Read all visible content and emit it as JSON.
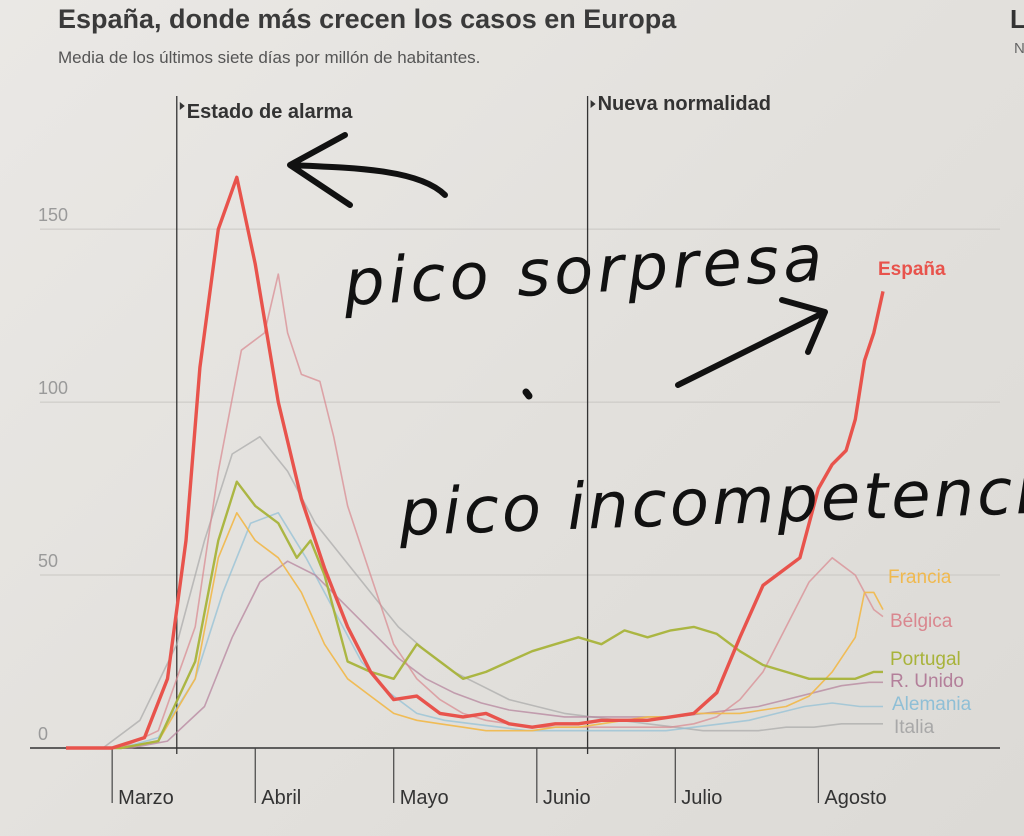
{
  "edge_fragments": {
    "top_letter": "L",
    "second_letter": "N"
  },
  "chart_data": {
    "type": "line",
    "title": "España, donde más crecen los casos en Europa",
    "subtitle": "Media de los últimos siete días por millón de habitantes.",
    "xlabel": "",
    "ylabel": "",
    "ylim": [
      0,
      170
    ],
    "yticks": [
      0,
      50,
      100,
      150
    ],
    "xlim": [
      0,
      177
    ],
    "months": [
      {
        "label": "Marzo",
        "day": 29
      },
      {
        "label": "Abril",
        "day": 60
      },
      {
        "label": "Mayo",
        "day": 90
      },
      {
        "label": "Junio",
        "day": 121
      },
      {
        "label": "Julio",
        "day": 151
      },
      {
        "label": "Agosto",
        "day": 182
      }
    ],
    "month_ticks": [
      10,
      41,
      71,
      102,
      132,
      163
    ],
    "grid": true,
    "legend": "right-end labels",
    "annotations": [
      {
        "label": "Estado de alarma",
        "day": 24
      },
      {
        "label": "Nueva normalidad",
        "day": 113
      }
    ],
    "series": [
      {
        "name": "España",
        "color": "#e8534c",
        "x": [
          0,
          10,
          17,
          22,
          26,
          29,
          33,
          37,
          41,
          46,
          51,
          56,
          61,
          66,
          71,
          76,
          81,
          86,
          91,
          96,
          101,
          106,
          111,
          116,
          121,
          126,
          131,
          136,
          141,
          146,
          151,
          156,
          159,
          163,
          166,
          169,
          171,
          173,
          175,
          177
        ],
        "y": [
          0,
          0,
          3,
          20,
          60,
          110,
          150,
          165,
          140,
          100,
          72,
          52,
          35,
          22,
          14,
          15,
          10,
          9,
          10,
          7,
          6,
          7,
          7,
          8,
          8,
          8,
          9,
          10,
          16,
          32,
          47,
          52,
          55,
          75,
          82,
          86,
          95,
          112,
          120,
          132
        ]
      },
      {
        "name": "Francia",
        "color": "#f0b94f",
        "x": [
          0,
          12,
          20,
          28,
          33,
          37,
          41,
          46,
          51,
          56,
          61,
          66,
          71,
          76,
          81,
          86,
          91,
          96,
          101,
          106,
          111,
          116,
          121,
          126,
          131,
          136,
          141,
          146,
          151,
          156,
          161,
          166,
          171,
          173,
          175,
          177
        ],
        "y": [
          0,
          0,
          2,
          20,
          55,
          68,
          60,
          55,
          45,
          30,
          20,
          15,
          10,
          8,
          7,
          6,
          5,
          5,
          5,
          6,
          6,
          7,
          8,
          9,
          9,
          10,
          10,
          10,
          11,
          12,
          15,
          22,
          32,
          45,
          45,
          40
        ]
      },
      {
        "name": "Bélgica",
        "color": "#d9878f",
        "x": [
          0,
          12,
          20,
          28,
          33,
          38,
          43,
          46,
          48,
          51,
          55,
          58,
          61,
          66,
          71,
          76,
          81,
          86,
          91,
          96,
          101,
          106,
          111,
          116,
          121,
          126,
          131,
          136,
          141,
          146,
          151,
          156,
          161,
          166,
          171,
          175,
          177
        ],
        "y": [
          0,
          0,
          5,
          35,
          80,
          115,
          120,
          137,
          120,
          108,
          106,
          90,
          70,
          50,
          30,
          20,
          14,
          10,
          8,
          7,
          6,
          6,
          6,
          6,
          6,
          6,
          6,
          7,
          9,
          14,
          22,
          35,
          48,
          55,
          50,
          40,
          38
        ]
      },
      {
        "name": "Portugal",
        "color": "#a8b33a",
        "x": [
          0,
          12,
          20,
          28,
          33,
          37,
          41,
          46,
          50,
          53,
          56,
          58,
          61,
          66,
          71,
          76,
          81,
          86,
          91,
          96,
          101,
          106,
          111,
          116,
          121,
          126,
          131,
          136,
          141,
          146,
          151,
          156,
          161,
          166,
          171,
          175,
          177
        ],
        "y": [
          0,
          0,
          2,
          25,
          60,
          77,
          70,
          65,
          55,
          60,
          50,
          40,
          25,
          22,
          20,
          30,
          25,
          20,
          22,
          25,
          28,
          30,
          32,
          30,
          34,
          32,
          34,
          35,
          33,
          28,
          24,
          22,
          20,
          20,
          20,
          22,
          22
        ]
      },
      {
        "name": "R. Unido",
        "color": "#b37f9a",
        "x": [
          0,
          14,
          22,
          30,
          36,
          42,
          48,
          54,
          60,
          66,
          72,
          78,
          84,
          90,
          96,
          102,
          108,
          114,
          120,
          126,
          132,
          138,
          144,
          150,
          156,
          162,
          168,
          174,
          177
        ],
        "y": [
          0,
          0,
          2,
          12,
          32,
          48,
          54,
          50,
          42,
          34,
          26,
          20,
          16,
          13,
          11,
          10,
          9,
          9,
          9,
          9,
          9,
          10,
          11,
          12,
          14,
          16,
          18,
          19,
          19
        ]
      },
      {
        "name": "Alemania",
        "color": "#8fbfd6",
        "x": [
          0,
          12,
          20,
          28,
          34,
          40,
          46,
          52,
          58,
          64,
          70,
          76,
          82,
          88,
          94,
          100,
          106,
          112,
          118,
          124,
          130,
          136,
          142,
          148,
          154,
          160,
          166,
          172,
          177
        ],
        "y": [
          0,
          0,
          3,
          20,
          45,
          65,
          68,
          55,
          40,
          25,
          16,
          10,
          8,
          7,
          6,
          5,
          5,
          5,
          5,
          5,
          5,
          6,
          7,
          8,
          10,
          12,
          13,
          12,
          12
        ]
      },
      {
        "name": "Italia",
        "color": "#a8a8a8",
        "x": [
          0,
          8,
          16,
          24,
          30,
          36,
          42,
          48,
          54,
          60,
          66,
          72,
          78,
          84,
          90,
          96,
          102,
          108,
          114,
          120,
          126,
          132,
          138,
          144,
          150,
          156,
          162,
          168,
          174,
          177
        ],
        "y": [
          0,
          0,
          8,
          30,
          60,
          85,
          90,
          80,
          65,
          55,
          45,
          35,
          28,
          22,
          18,
          14,
          12,
          10,
          9,
          8,
          7,
          6,
          5,
          5,
          5,
          6,
          6,
          7,
          7,
          7
        ]
      }
    ]
  },
  "handwriting": {
    "note_1": "pico sorpresa",
    "note_2": "pico incompetencia"
  }
}
